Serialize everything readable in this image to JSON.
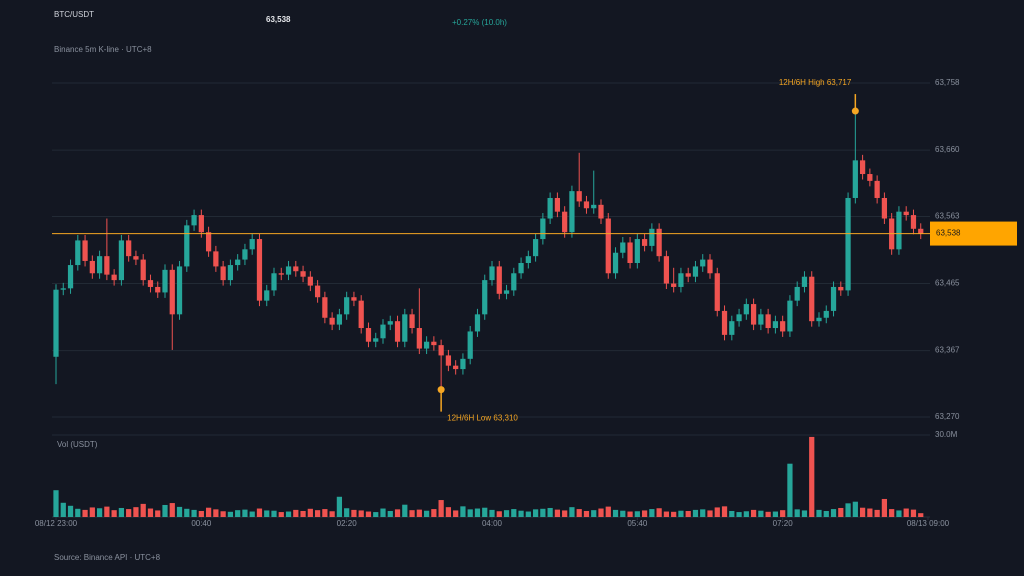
{
  "chart_data": {
    "type": "candlestick",
    "title": "BTC/USDT",
    "last_price": {
      "value": 63538,
      "label": "63,538"
    },
    "change": "+0.27% (10.0h)",
    "subtitle": "Binance 5m K-line · UTC+8",
    "volume_label": "Vol (USDT)",
    "source": "Source: Binance API · UTC+8",
    "up_color": "#26a69a",
    "down_color": "#ef5350",
    "price_line_color": "#f5a623",
    "grid": true,
    "ylim": [
      63270,
      63758
    ],
    "yticks": [
      {
        "value": 63270,
        "label": "63,270"
      },
      {
        "value": 63367,
        "label": "63,367"
      },
      {
        "value": 63465,
        "label": "63,465"
      },
      {
        "value": 63563,
        "label": "63,563"
      },
      {
        "value": 63660,
        "label": "63,660"
      },
      {
        "value": 63758,
        "label": "63,758"
      }
    ],
    "vol_ylim": [
      0,
      30
    ],
    "vol_yticks": [
      {
        "value": 30,
        "label": "30.0M"
      }
    ],
    "xlim": [
      0,
      120
    ],
    "xticks": [
      {
        "value": 0,
        "label": "08/12 23:00"
      },
      {
        "value": 20,
        "label": "00:40"
      },
      {
        "value": 40,
        "label": "02:20"
      },
      {
        "value": 60,
        "label": "04:00"
      },
      {
        "value": 80,
        "label": "05:40"
      },
      {
        "value": 100,
        "label": "07:20"
      },
      {
        "value": 120,
        "label": "08/13 09:00"
      }
    ],
    "annotations": [
      {
        "text": "12H/6H High 63,717",
        "value": 63717,
        "kind": "high"
      },
      {
        "text": "12H/6H Low 63,310",
        "value": 63310,
        "kind": "low"
      }
    ],
    "open": [
      63358,
      63456,
      63458,
      63492,
      63528,
      63498,
      63480,
      63505,
      63478,
      63470,
      63528,
      63505,
      63500,
      63470,
      63460,
      63452,
      63485,
      63420,
      63490,
      63550,
      63565,
      63540,
      63512,
      63490,
      63470,
      63492,
      63500,
      63515,
      63530,
      63440,
      63455,
      63480,
      63478,
      63490,
      63483,
      63475,
      63462,
      63445,
      63415,
      63405,
      63420,
      63445,
      63440,
      63400,
      63380,
      63385,
      63405,
      63410,
      63380,
      63420,
      63400,
      63370,
      63380,
      63375,
      63360,
      63345,
      63340,
      63355,
      63395,
      63420,
      63470,
      63490,
      63450,
      63455,
      63480,
      63495,
      63505,
      63530,
      63560,
      63590,
      63570,
      63540,
      63600,
      63585,
      63575,
      63580,
      63560,
      63480,
      63510,
      63525,
      63495,
      63530,
      63520,
      63545,
      63505,
      63465,
      63460,
      63480,
      63475,
      63490,
      63500,
      63480,
      63425,
      63390,
      63410,
      63420,
      63435,
      63405,
      63420,
      63400,
      63410,
      63395,
      63440,
      63460,
      63475,
      63410,
      63415,
      63425,
      63460,
      63455,
      63590,
      63645,
      63625,
      63615,
      63590,
      63560,
      63515,
      63570,
      63565,
      63545
    ],
    "high": [
      63464,
      63466,
      63500,
      63536,
      63536,
      63506,
      63513,
      63560,
      63486,
      63536,
      63536,
      63513,
      63508,
      63478,
      63468,
      63493,
      63493,
      63498,
      63558,
      63573,
      63573,
      63548,
      63520,
      63498,
      63500,
      63508,
      63523,
      63538,
      63538,
      63463,
      63488,
      63488,
      63498,
      63498,
      63491,
      63483,
      63470,
      63453,
      63423,
      63428,
      63453,
      63453,
      63448,
      63408,
      63393,
      63413,
      63418,
      63418,
      63428,
      63428,
      63458,
      63388,
      63388,
      63383,
      63368,
      63353,
      63363,
      63403,
      63428,
      63478,
      63498,
      63498,
      63463,
      63488,
      63503,
      63513,
      63538,
      63568,
      63598,
      63598,
      63578,
      63608,
      63656,
      63593,
      63630,
      63588,
      63568,
      63518,
      63533,
      63533,
      63538,
      63538,
      63553,
      63553,
      63513,
      63488,
      63488,
      63488,
      63498,
      63508,
      63508,
      63488,
      63433,
      63418,
      63428,
      63443,
      63443,
      63428,
      63428,
      63418,
      63418,
      63448,
      63468,
      63483,
      63483,
      63423,
      63433,
      63468,
      63468,
      63598,
      63717,
      63653,
      63633,
      63623,
      63598,
      63568,
      63578,
      63578,
      63573,
      63553
    ],
    "low": [
      63318,
      63448,
      63450,
      63484,
      63490,
      63472,
      63472,
      63470,
      63462,
      63462,
      63497,
      63492,
      63462,
      63452,
      63444,
      63444,
      63368,
      63412,
      63482,
      63542,
      63532,
      63504,
      63482,
      63462,
      63462,
      63484,
      63492,
      63507,
      63432,
      63432,
      63447,
      63470,
      63470,
      63475,
      63467,
      63454,
      63437,
      63407,
      63397,
      63397,
      63412,
      63432,
      63392,
      63372,
      63372,
      63377,
      63397,
      63372,
      63372,
      63392,
      63362,
      63362,
      63367,
      63310,
      63337,
      63332,
      63332,
      63347,
      63387,
      63412,
      63462,
      63442,
      63442,
      63447,
      63472,
      63487,
      63497,
      63522,
      63552,
      63562,
      63532,
      63532,
      63577,
      63567,
      63567,
      63552,
      63472,
      63472,
      63502,
      63487,
      63487,
      63512,
      63512,
      63497,
      63457,
      63452,
      63452,
      63467,
      63467,
      63482,
      63472,
      63417,
      63382,
      63382,
      63402,
      63412,
      63397,
      63397,
      63392,
      63392,
      63387,
      63387,
      63432,
      63452,
      63402,
      63402,
      63407,
      63417,
      63447,
      63447,
      63582,
      63617,
      63607,
      63582,
      63552,
      63507,
      63507,
      63557,
      63537,
      63530
    ],
    "close": [
      63456,
      63458,
      63492,
      63528,
      63498,
      63480,
      63505,
      63478,
      63470,
      63528,
      63505,
      63500,
      63470,
      63460,
      63452,
      63485,
      63420,
      63490,
      63550,
      63565,
      63540,
      63512,
      63490,
      63470,
      63492,
      63500,
      63515,
      63530,
      63440,
      63455,
      63480,
      63478,
      63490,
      63483,
      63475,
      63462,
      63445,
      63415,
      63405,
      63420,
      63445,
      63440,
      63400,
      63380,
      63385,
      63405,
      63410,
      63380,
      63420,
      63400,
      63370,
      63380,
      63375,
      63360,
      63345,
      63340,
      63355,
      63395,
      63420,
      63470,
      63490,
      63450,
      63455,
      63480,
      63495,
      63505,
      63530,
      63560,
      63590,
      63570,
      63540,
      63600,
      63585,
      63575,
      63580,
      63560,
      63480,
      63510,
      63525,
      63495,
      63530,
      63520,
      63545,
      63505,
      63465,
      63460,
      63480,
      63475,
      63490,
      63500,
      63480,
      63425,
      63390,
      63410,
      63420,
      63435,
      63405,
      63420,
      63400,
      63410,
      63395,
      63440,
      63460,
      63475,
      63410,
      63415,
      63425,
      63460,
      63455,
      63590,
      63645,
      63625,
      63615,
      63590,
      63560,
      63515,
      63570,
      63565,
      63545,
      63538
    ],
    "volume": [
      9.8,
      5.2,
      4.1,
      3.0,
      2.6,
      3.5,
      3.2,
      3.8,
      2.5,
      3.3,
      2.9,
      3.6,
      4.8,
      3.1,
      2.4,
      4.4,
      5.1,
      3.7,
      3.0,
      2.6,
      2.2,
      3.4,
      2.8,
      2.1,
      1.9,
      2.5,
      2.7,
      2.0,
      3.1,
      2.4,
      2.3,
      1.8,
      2.0,
      2.6,
      2.2,
      3.0,
      2.5,
      2.9,
      2.1,
      7.4,
      3.2,
      2.6,
      2.4,
      2.0,
      1.8,
      3.1,
      2.2,
      2.8,
      4.5,
      2.5,
      2.7,
      2.3,
      2.9,
      6.2,
      3.6,
      2.4,
      3.9,
      2.8,
      3.1,
      3.4,
      2.6,
      2.1,
      2.5,
      2.9,
      2.3,
      2.0,
      2.8,
      3.0,
      3.3,
      2.7,
      2.4,
      3.6,
      2.9,
      2.2,
      2.5,
      3.1,
      3.8,
      2.6,
      2.3,
      2.0,
      2.1,
      2.4,
      2.9,
      3.2,
      2.0,
      1.9,
      2.3,
      2.2,
      2.6,
      2.8,
      2.4,
      3.5,
      3.9,
      2.2,
      1.8,
      2.1,
      2.6,
      2.3,
      1.9,
      2.0,
      2.5,
      19.5,
      2.8,
      2.4,
      29.3,
      2.6,
      2.2,
      2.9,
      3.3,
      5.0,
      5.6,
      3.4,
      3.1,
      2.6,
      6.6,
      2.9,
      2.4,
      3.1,
      2.7,
      1.4
    ]
  }
}
